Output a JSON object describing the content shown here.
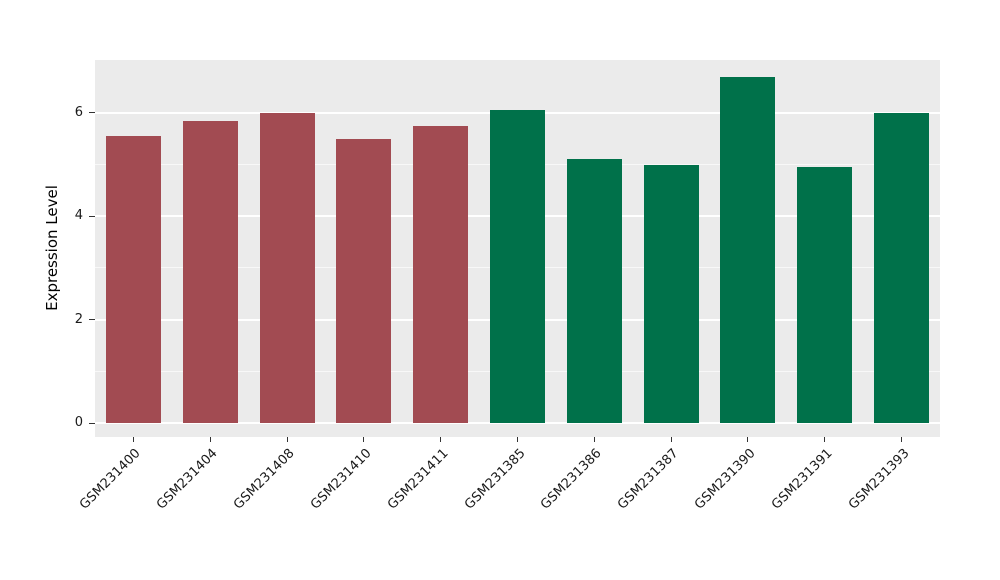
{
  "chart_data": {
    "type": "bar",
    "title": "",
    "xlabel": "",
    "ylabel": "Expression Level",
    "categories": [
      "GSM231400",
      "GSM231404",
      "GSM231408",
      "GSM231410",
      "GSM231411",
      "GSM231385",
      "GSM231386",
      "GSM231387",
      "GSM231390",
      "GSM231391",
      "GSM231393"
    ],
    "values": [
      5.55,
      5.85,
      6.0,
      5.5,
      5.75,
      6.05,
      5.1,
      5.0,
      6.7,
      4.95,
      6.0
    ],
    "bar_colors": [
      "#a24b52",
      "#a24b52",
      "#a24b52",
      "#a24b52",
      "#a24b52",
      "#00714a",
      "#00714a",
      "#00714a",
      "#00714a",
      "#00714a",
      "#00714a"
    ],
    "group_colors": {
      "red_group": "#a24b52",
      "green_group": "#00714a"
    },
    "ylim": [
      0,
      7.05
    ],
    "yticks": [
      0,
      2,
      4,
      6
    ],
    "minor_gridlines": [
      1,
      3,
      5
    ],
    "grid": true,
    "legend_position": "none",
    "panel_bg": "#ebebeb",
    "grid_color": "#ffffff"
  }
}
